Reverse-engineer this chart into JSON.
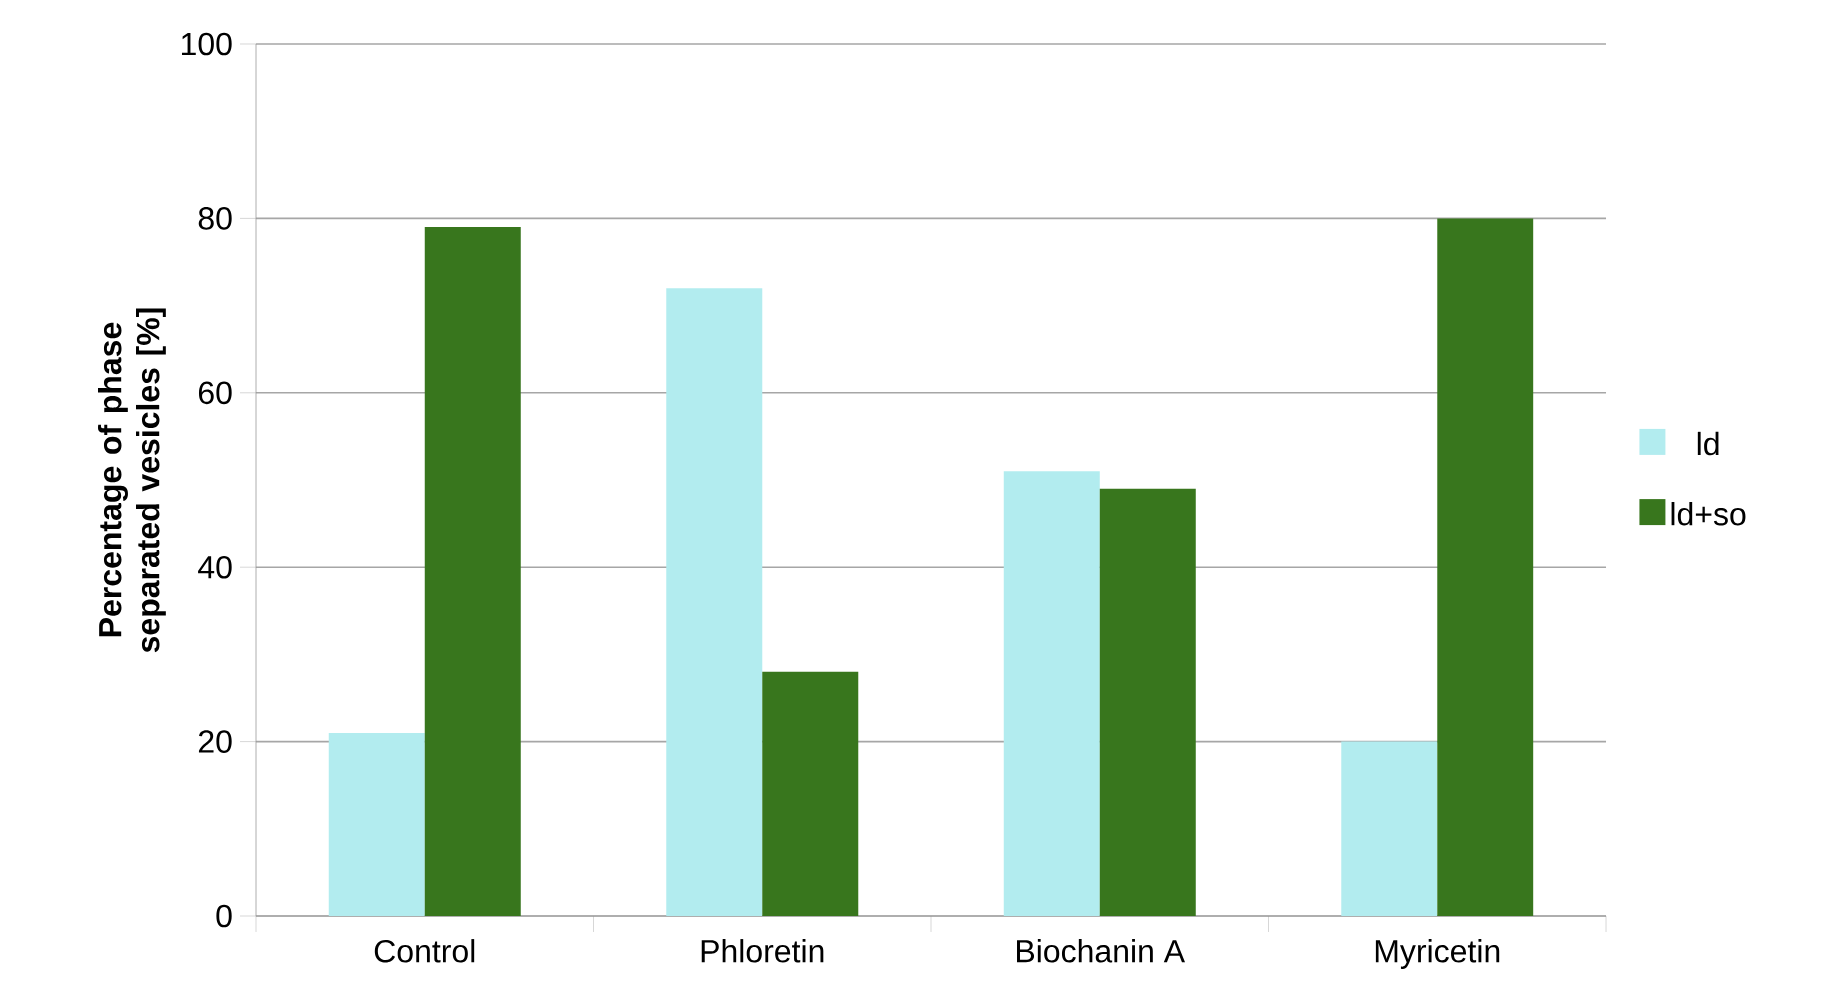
{
  "chart_data": {
    "type": "bar",
    "ylabel": "Percentage of phase separated vesicles [%]",
    "categories": [
      "Control",
      "Phloretin",
      "Biochanin A",
      "Myricetin"
    ],
    "series": [
      {
        "name": "ld",
        "color": "#b2ecef",
        "values": [
          21,
          72,
          51,
          20
        ]
      },
      {
        "name": "ld+so",
        "color": "#38761d",
        "values": [
          79,
          28,
          49,
          80
        ]
      }
    ],
    "ylim": [
      0,
      100
    ],
    "yticks": [
      0,
      20,
      40,
      60,
      80,
      100
    ],
    "grid": "y",
    "legend": "right"
  }
}
